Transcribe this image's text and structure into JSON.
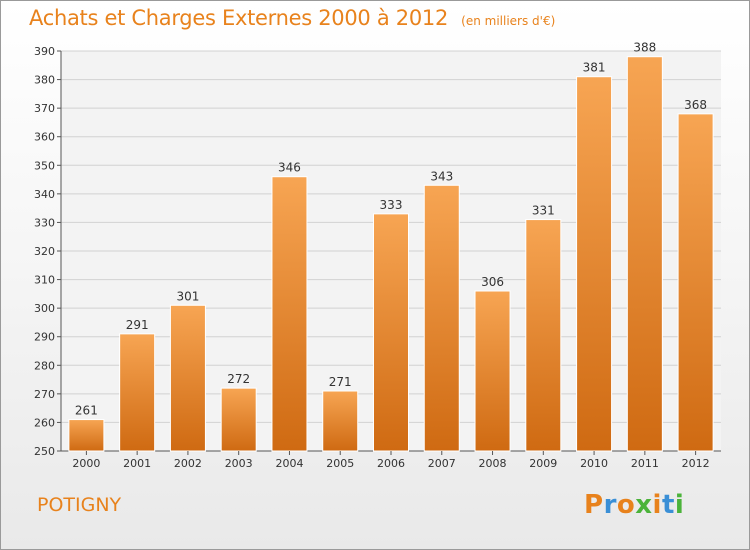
{
  "chart_data": {
    "type": "bar",
    "title": "Achats et Charges Externes 2000 à 2012",
    "subtitle": "(en milliers d'€)",
    "categories": [
      "2000",
      "2001",
      "2002",
      "2003",
      "2004",
      "2005",
      "2006",
      "2007",
      "2008",
      "2009",
      "2010",
      "2011",
      "2012"
    ],
    "values": [
      261,
      291,
      301,
      272,
      346,
      271,
      333,
      343,
      306,
      331,
      381,
      388,
      368
    ],
    "ylim": [
      250,
      390
    ],
    "ytick_step": 10,
    "xlabel": "",
    "ylabel": "",
    "grid": true,
    "bar_color": "#f0892c"
  },
  "commune": "POTIGNY",
  "brand": {
    "letters": [
      "P",
      "r",
      "o",
      "x",
      "i",
      "t",
      "i"
    ],
    "colors": [
      "#e8821c",
      "#3a8fd6",
      "#e8821c",
      "#4bb33a",
      "#e8821c",
      "#3a8fd6",
      "#4bb33a"
    ]
  }
}
